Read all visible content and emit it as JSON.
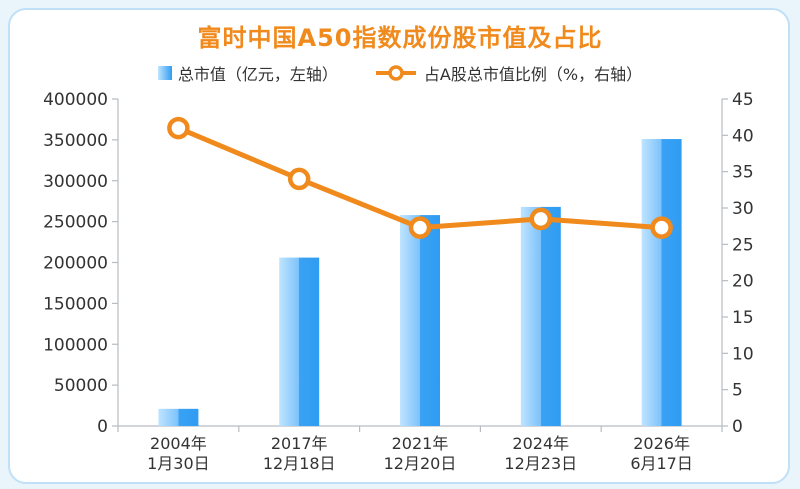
{
  "title": "富时中国A50指数成份股市值及占比",
  "legend": {
    "bar": "总市值（亿元，左轴）",
    "line": "占A股总市值比例（%，右轴）"
  },
  "colors": {
    "title": "#f08a1c",
    "bar_light": "#bfe4ff",
    "bar_dark": "#2f9cf2",
    "line": "#f08a1c"
  },
  "chart_data": {
    "type": "bar",
    "categories": [
      [
        "2004年",
        "1月30日"
      ],
      [
        "2017年",
        "12月18日"
      ],
      [
        "2021年",
        "12月20日"
      ],
      [
        "2024年",
        "12月23日"
      ],
      [
        "2026年",
        "6月17日"
      ]
    ],
    "series": [
      {
        "name": "总市值（亿元，左轴）",
        "type": "bar",
        "axis": "left",
        "values": [
          21000,
          206000,
          258000,
          268000,
          351000
        ]
      },
      {
        "name": "占A股总市值比例（%，右轴）",
        "type": "line",
        "axis": "right",
        "values": [
          41,
          34,
          27.3,
          28.5,
          27.3
        ]
      }
    ],
    "left_axis": {
      "ylim": [
        0,
        400000
      ],
      "ticks": [
        0,
        50000,
        100000,
        150000,
        200000,
        250000,
        300000,
        350000,
        400000
      ]
    },
    "right_axis": {
      "ylim": [
        0,
        45
      ],
      "ticks": [
        0,
        5,
        10,
        15,
        20,
        25,
        30,
        35,
        40,
        45
      ]
    },
    "grid": false,
    "legend_position": "top"
  }
}
